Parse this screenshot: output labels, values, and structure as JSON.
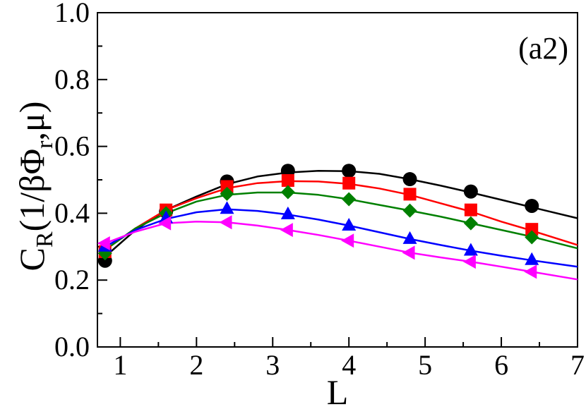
{
  "chart_data": {
    "type": "line",
    "panel_label": "(a2)",
    "xlabel": "L",
    "ylabel": {
      "base": "C",
      "sub1": "R",
      "mid": "(1/βΦ",
      "sub2": "r",
      "end": ",μ)"
    },
    "xlim": [
      0.7,
      7
    ],
    "ylim": [
      0,
      1
    ],
    "xticks": [
      1,
      2,
      3,
      4,
      5,
      6,
      7
    ],
    "yticks": [
      "0.0",
      "0.2",
      "0.4",
      "0.6",
      "0.8",
      "1.0"
    ],
    "grid": false,
    "legend": "none",
    "series": [
      {
        "color": "#000000",
        "marker": "circle",
        "points": {
          "x": [
            0.8,
            1.6,
            2.4,
            3.2,
            4.0,
            4.8,
            5.6,
            6.4
          ],
          "y": [
            0.258,
            0.405,
            0.495,
            0.527,
            0.527,
            0.502,
            0.465,
            0.422
          ]
        },
        "curve": {
          "x": [
            0.8,
            1.2,
            1.6,
            2.0,
            2.4,
            2.8,
            3.2,
            3.6,
            4.0,
            4.4,
            4.8,
            5.2,
            5.6,
            6.0,
            6.4,
            7.0
          ],
          "y": [
            0.27,
            0.35,
            0.41,
            0.45,
            0.487,
            0.51,
            0.522,
            0.527,
            0.526,
            0.518,
            0.502,
            0.483,
            0.462,
            0.44,
            0.418,
            0.385
          ]
        }
      },
      {
        "color": "#ff0000",
        "marker": "square",
        "points": {
          "x": [
            0.8,
            1.6,
            2.4,
            3.2,
            4.0,
            4.8,
            5.6,
            6.4
          ],
          "y": [
            0.285,
            0.41,
            0.48,
            0.498,
            0.49,
            0.457,
            0.41,
            0.352
          ]
        },
        "curve": {
          "x": [
            0.8,
            1.2,
            1.6,
            2.0,
            2.4,
            2.8,
            3.2,
            3.6,
            4.0,
            4.4,
            4.8,
            5.2,
            5.6,
            6.0,
            6.4,
            7.0
          ],
          "y": [
            0.29,
            0.355,
            0.41,
            0.445,
            0.475,
            0.49,
            0.496,
            0.495,
            0.488,
            0.474,
            0.455,
            0.43,
            0.405,
            0.375,
            0.348,
            0.305
          ]
        }
      },
      {
        "color": "#008000",
        "marker": "diamond",
        "points": {
          "x": [
            0.8,
            1.6,
            2.4,
            3.2,
            4.0,
            4.8,
            5.6,
            6.4
          ],
          "y": [
            0.28,
            0.4,
            0.458,
            0.463,
            0.442,
            0.408,
            0.37,
            0.328
          ]
        },
        "curve": {
          "x": [
            0.8,
            1.2,
            1.6,
            2.0,
            2.4,
            2.8,
            3.2,
            3.6,
            4.0,
            4.4,
            4.8,
            5.2,
            5.6,
            6.0,
            6.4,
            7.0
          ],
          "y": [
            0.29,
            0.355,
            0.4,
            0.435,
            0.455,
            0.462,
            0.462,
            0.455,
            0.442,
            0.425,
            0.408,
            0.39,
            0.37,
            0.35,
            0.33,
            0.295
          ]
        }
      },
      {
        "color": "#0000ff",
        "marker": "triangle-up",
        "points": {
          "x": [
            0.8,
            1.6,
            2.4,
            3.2,
            4.0,
            4.8,
            5.6,
            6.4
          ],
          "y": [
            0.3,
            0.385,
            0.413,
            0.397,
            0.363,
            0.323,
            0.288,
            0.26
          ]
        },
        "curve": {
          "x": [
            0.8,
            1.2,
            1.6,
            2.0,
            2.4,
            2.8,
            3.2,
            3.6,
            4.0,
            4.4,
            4.8,
            5.2,
            5.6,
            6.0,
            6.4,
            7.0
          ],
          "y": [
            0.3,
            0.35,
            0.383,
            0.403,
            0.412,
            0.407,
            0.396,
            0.381,
            0.363,
            0.343,
            0.323,
            0.305,
            0.288,
            0.273,
            0.259,
            0.24
          ]
        }
      },
      {
        "color": "#ff00ff",
        "marker": "triangle-left",
        "points": {
          "x": [
            0.8,
            1.6,
            2.4,
            3.2,
            4.0,
            4.8,
            5.6,
            6.4
          ],
          "y": [
            0.31,
            0.37,
            0.373,
            0.35,
            0.318,
            0.282,
            0.255,
            0.225
          ]
        },
        "curve": {
          "x": [
            0.8,
            1.2,
            1.6,
            2.0,
            2.4,
            2.8,
            3.2,
            3.6,
            4.0,
            4.4,
            4.8,
            5.2,
            5.6,
            6.0,
            6.4,
            7.0
          ],
          "y": [
            0.31,
            0.345,
            0.37,
            0.375,
            0.373,
            0.363,
            0.35,
            0.335,
            0.318,
            0.3,
            0.282,
            0.268,
            0.255,
            0.24,
            0.225,
            0.202
          ]
        }
      }
    ]
  }
}
